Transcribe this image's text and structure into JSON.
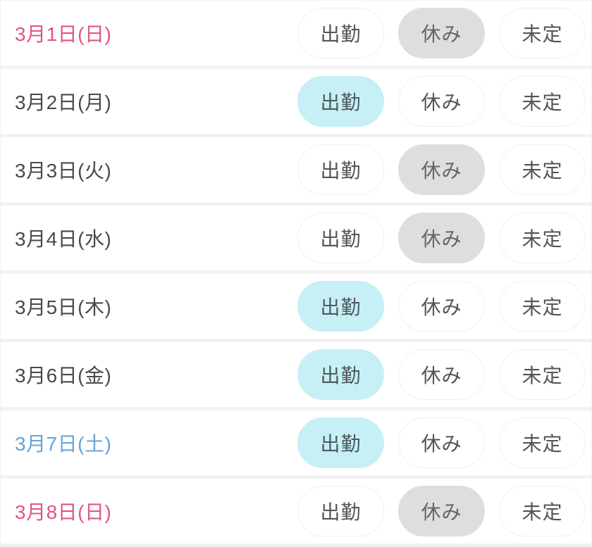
{
  "colors": {
    "sunday_text": "#e0577b",
    "saturday_text": "#67a3da",
    "weekday_text": "#4a4a4a",
    "selected_work_bg": "#c6f0f6",
    "selected_off_bg": "#dedede",
    "button_text": "#555555",
    "divider": "#f1f1f1"
  },
  "options": {
    "work": "出勤",
    "off": "休み",
    "undecided": "未定"
  },
  "rows": [
    {
      "date": "3月1日(日)",
      "day_type": "sunday",
      "selected": "off"
    },
    {
      "date": "3月2日(月)",
      "day_type": "weekday",
      "selected": "work"
    },
    {
      "date": "3月3日(火)",
      "day_type": "weekday",
      "selected": "off"
    },
    {
      "date": "3月4日(水)",
      "day_type": "weekday",
      "selected": "off"
    },
    {
      "date": "3月5日(木)",
      "day_type": "weekday",
      "selected": "work"
    },
    {
      "date": "3月6日(金)",
      "day_type": "weekday",
      "selected": "work"
    },
    {
      "date": "3月7日(土)",
      "day_type": "saturday",
      "selected": "work"
    },
    {
      "date": "3月8日(日)",
      "day_type": "sunday",
      "selected": "off"
    }
  ]
}
